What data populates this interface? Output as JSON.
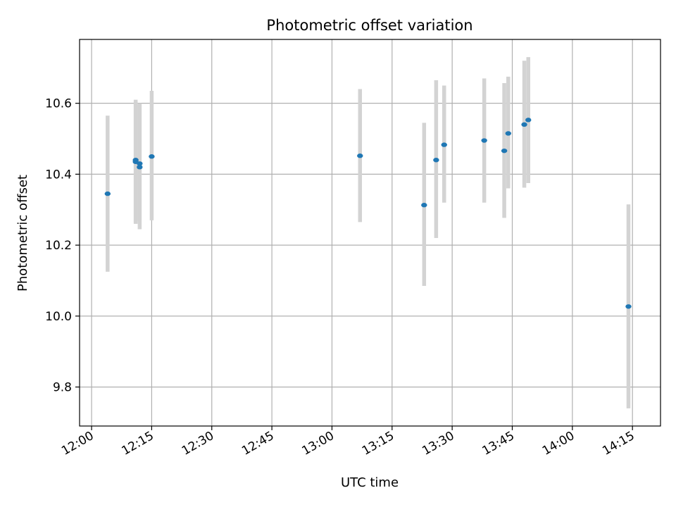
{
  "chart_data": {
    "type": "scatter",
    "title": "Photometric offset variation",
    "xlabel": "UTC time",
    "ylabel": "Photometric offset",
    "x_ticks": [
      "12:00",
      "12:15",
      "12:30",
      "12:45",
      "13:00",
      "13:15",
      "13:30",
      "13:45",
      "14:00",
      "14:15"
    ],
    "y_ticks": [
      9.8,
      10.0,
      10.2,
      10.4,
      10.6
    ],
    "xlim": [
      "11:57",
      "14:22"
    ],
    "ylim": [
      9.69,
      10.78
    ],
    "grid": true,
    "legend": "none",
    "colors": {
      "point": "#1f77b4",
      "errorbar": "#d3d3d3",
      "grid": "#b0b0b0"
    },
    "points": [
      {
        "x": "12:04",
        "y": 10.345,
        "ylow": 10.125,
        "yhigh": 10.565
      },
      {
        "x": "12:11",
        "y": 10.44,
        "ylow": 10.265,
        "yhigh": 10.61
      },
      {
        "x": "12:11",
        "y": 10.435,
        "ylow": 10.26,
        "yhigh": 10.605
      },
      {
        "x": "12:12",
        "y": 10.43,
        "ylow": 10.27,
        "yhigh": 10.6
      },
      {
        "x": "12:12",
        "y": 10.42,
        "ylow": 10.245,
        "yhigh": 10.595
      },
      {
        "x": "12:15",
        "y": 10.45,
        "ylow": 10.27,
        "yhigh": 10.635
      },
      {
        "x": "13:07",
        "y": 10.452,
        "ylow": 10.265,
        "yhigh": 10.64
      },
      {
        "x": "13:23",
        "y": 10.313,
        "ylow": 10.085,
        "yhigh": 10.545
      },
      {
        "x": "13:26",
        "y": 10.44,
        "ylow": 10.22,
        "yhigh": 10.665
      },
      {
        "x": "13:28",
        "y": 10.483,
        "ylow": 10.32,
        "yhigh": 10.65
      },
      {
        "x": "13:38",
        "y": 10.495,
        "ylow": 10.32,
        "yhigh": 10.67
      },
      {
        "x": "13:43",
        "y": 10.466,
        "ylow": 10.277,
        "yhigh": 10.657
      },
      {
        "x": "13:44",
        "y": 10.515,
        "ylow": 10.36,
        "yhigh": 10.675
      },
      {
        "x": "13:48",
        "y": 10.54,
        "ylow": 10.362,
        "yhigh": 10.72
      },
      {
        "x": "13:49",
        "y": 10.553,
        "ylow": 10.375,
        "yhigh": 10.73
      },
      {
        "x": "14:14",
        "y": 10.027,
        "ylow": 9.74,
        "yhigh": 10.315
      }
    ]
  }
}
